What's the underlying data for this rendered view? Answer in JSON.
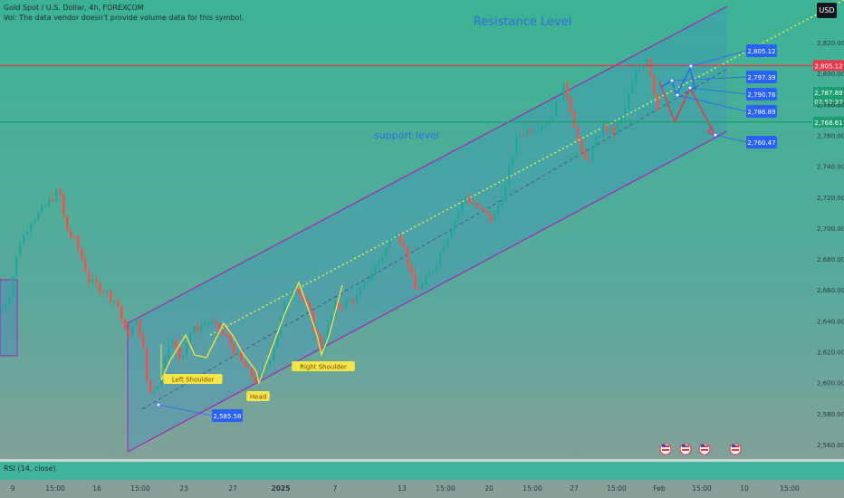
{
  "header": {
    "title": "Gold Spot / U.S. Dollar, 4h, FOREXCOM",
    "volume_note": "Vol: The data vendor doesn't provide volume data for this symbol."
  },
  "currency_button": "USD",
  "indicator_label": "RSI (14, close)",
  "chart_data": {
    "type": "candlestick",
    "title": "Gold Spot / U.S. Dollar, 4h, FOREXCOM",
    "ylim": [
      2550,
      2840
    ],
    "y_ticks": [
      "2,560.00",
      "2,580.00",
      "2,600.00",
      "2,620.00",
      "2,640.00",
      "2,660.00",
      "2,680.00",
      "2,700.00",
      "2,720.00",
      "2,740.00",
      "2,760.00",
      "2,780.00",
      "2,800.00",
      "2,820.00"
    ],
    "x_ticks": [
      "9",
      "15:00",
      "16",
      "15:00",
      "23",
      "27",
      "2025",
      "7",
      "13",
      "15:00",
      "20",
      "15:00",
      "27",
      "15:00",
      "Feb",
      "15:00",
      "10",
      "15:00"
    ],
    "horizontal_levels": [
      {
        "value": 2805.12,
        "label": "2,805.12",
        "color": "#e8394a"
      },
      {
        "value": 2768.61,
        "label": "2,768.61",
        "color": "#1f9e74"
      }
    ],
    "price_tags": [
      {
        "value": 2787.89,
        "label": "2,787.89",
        "sub": "02:52:32",
        "color": "#1f9e74"
      }
    ],
    "annotations": [
      {
        "text": "Resistance Level"
      },
      {
        "text": "support level"
      },
      {
        "text": "Left Shoulder"
      },
      {
        "text": "Head"
      },
      {
        "text": "Right Shoulder"
      }
    ],
    "callouts": [
      "2,805.12",
      "2,797.39",
      "2,790.76",
      "2,786.89",
      "2,760.47",
      "2,585.58"
    ],
    "colors": {
      "up": "#26a69a",
      "down": "#ef5350",
      "channel": "#9c27b0",
      "pattern": "#f4e64a",
      "callout": "#2962ff"
    }
  }
}
